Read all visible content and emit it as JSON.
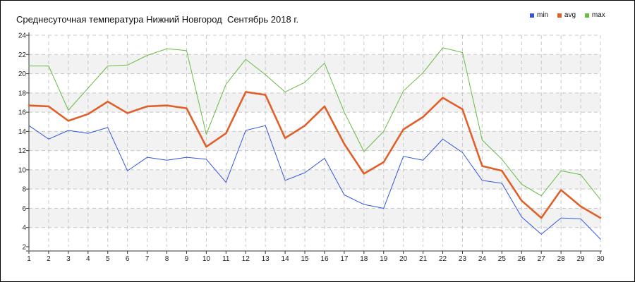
{
  "chart_data": {
    "type": "line",
    "title": "Среднесуточная температура Нижний Новгород  Сентябрь 2018 г.",
    "xlabel": "",
    "ylabel": "",
    "x": [
      1,
      2,
      3,
      4,
      5,
      6,
      7,
      8,
      9,
      10,
      11,
      12,
      13,
      14,
      15,
      16,
      17,
      18,
      19,
      20,
      21,
      22,
      23,
      24,
      25,
      26,
      27,
      28,
      29,
      30
    ],
    "xlim": [
      1,
      30
    ],
    "ylim": [
      2,
      24
    ],
    "yticks": [
      2,
      4,
      6,
      8,
      10,
      12,
      14,
      16,
      18,
      20,
      22,
      24
    ],
    "grid": true,
    "legend_position": "top-right",
    "series": [
      {
        "name": "min",
        "color": "#3355dd",
        "values": [
          14.6,
          13.2,
          14.1,
          13.8,
          14.4,
          9.9,
          11.3,
          11.0,
          11.3,
          11.1,
          8.7,
          14.1,
          14.6,
          8.9,
          9.7,
          11.2,
          7.4,
          6.4,
          6.0,
          11.4,
          11.0,
          13.2,
          11.8,
          8.9,
          8.6,
          5.1,
          3.3,
          5.0,
          4.9,
          2.8
        ]
      },
      {
        "name": "avg",
        "color": "#e0602a",
        "values": [
          16.7,
          16.6,
          15.1,
          15.8,
          17.1,
          15.9,
          16.6,
          16.7,
          16.4,
          12.4,
          13.8,
          18.1,
          17.8,
          13.3,
          14.6,
          16.6,
          12.7,
          9.6,
          10.8,
          14.2,
          15.5,
          17.5,
          16.3,
          10.4,
          9.9,
          6.8,
          5.0,
          7.9,
          6.2,
          5.0
        ]
      },
      {
        "name": "max",
        "color": "#66bb44",
        "values": [
          20.8,
          20.8,
          16.2,
          18.5,
          20.8,
          20.9,
          21.9,
          22.6,
          22.4,
          13.7,
          18.9,
          21.5,
          19.9,
          18.1,
          19.1,
          21.1,
          16.0,
          11.9,
          14.0,
          18.2,
          20.1,
          22.7,
          22.2,
          13.1,
          11.1,
          8.5,
          7.3,
          9.9,
          9.5,
          6.9
        ]
      }
    ]
  }
}
